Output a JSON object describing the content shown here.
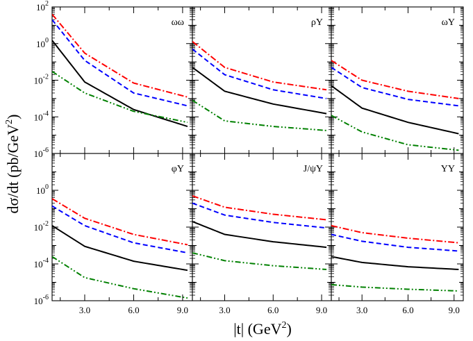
{
  "chart_data": {
    "type": "line",
    "layout": "2x3 panel grid, shared axes",
    "xlabel": "|t| (GeV²)",
    "xlabel_main": "|t| (GeV",
    "xlabel_sup": "2",
    "xlabel_close": ")",
    "ylabel": "dσ/dt (pb/GeV²)",
    "ylabel_main": "dσ/dt (pb/GeV",
    "ylabel_sup": "2",
    "ylabel_close": ")",
    "xlim": [
      1.0,
      9.6
    ],
    "ylim": [
      1e-06,
      100
    ],
    "yscale": "log",
    "x_ticks": [
      "3.0",
      "6.0",
      "9.0"
    ],
    "x_tick_values": [
      3.0,
      6.0,
      9.0
    ],
    "y_ticks_top": [
      {
        "base": "10",
        "exp": "2",
        "value": 100
      },
      {
        "base": "10",
        "exp": "0",
        "value": 1
      },
      {
        "base": "10",
        "exp": "-2",
        "value": 0.01
      },
      {
        "base": "10",
        "exp": "-4",
        "value": 0.0001
      },
      {
        "base": "10",
        "exp": "-6",
        "value": 1e-06
      }
    ],
    "y_ticks_bottom": [
      {
        "base": "10",
        "exp": "0",
        "value": 1
      },
      {
        "base": "10",
        "exp": "-2",
        "value": 0.01
      },
      {
        "base": "10",
        "exp": "-4",
        "value": 0.0001
      },
      {
        "base": "10",
        "exp": "-6",
        "value": 1e-06
      }
    ],
    "series_styles": [
      {
        "name": "red dash-dot",
        "color": "#ff0000",
        "dash": "9,3,2,3"
      },
      {
        "name": "blue dashed",
        "color": "#0000ff",
        "dash": "7,4"
      },
      {
        "name": "black solid",
        "color": "#000000",
        "dash": ""
      },
      {
        "name": "green dash-dot-dot",
        "color": "#008000",
        "dash": "8,3,2,3,2,3"
      }
    ],
    "panels": [
      {
        "label": "ωω",
        "row": 0,
        "col": 0,
        "series": [
          {
            "x": [
              1.0,
              3.0,
              6.0,
              9.3
            ],
            "y": [
              40,
              0.3,
              0.007,
              0.0012
            ]
          },
          {
            "x": [
              1.0,
              3.0,
              6.0,
              9.3
            ],
            "y": [
              20,
              0.12,
              0.002,
              0.0004
            ]
          },
          {
            "x": [
              1.0,
              3.0,
              6.0,
              9.3
            ],
            "y": [
              1.5,
              0.008,
              0.00025,
              3e-05
            ]
          },
          {
            "x": [
              1.0,
              3.0,
              6.0,
              9.3
            ],
            "y": [
              0.03,
              0.002,
              0.0002,
              5e-05
            ]
          }
        ]
      },
      {
        "label": "ρΥ",
        "row": 0,
        "col": 1,
        "series": [
          {
            "x": [
              1.0,
              3.0,
              6.0,
              9.3
            ],
            "y": [
              1.3,
              0.05,
              0.008,
              0.003
            ]
          },
          {
            "x": [
              1.0,
              3.0,
              6.0,
              9.3
            ],
            "y": [
              0.5,
              0.02,
              0.003,
              0.001
            ]
          },
          {
            "x": [
              1.0,
              3.0,
              6.0,
              9.3
            ],
            "y": [
              0.05,
              0.0025,
              0.0005,
              0.00015
            ]
          },
          {
            "x": [
              1.0,
              3.0,
              6.0,
              9.3
            ],
            "y": [
              0.0008,
              6e-05,
              3e-05,
              1.8e-05
            ]
          }
        ]
      },
      {
        "label": "ωΥ",
        "row": 0,
        "col": 2,
        "series": [
          {
            "x": [
              1.0,
              3.0,
              6.0,
              9.3
            ],
            "y": [
              0.12,
              0.01,
              0.0025,
              0.001
            ]
          },
          {
            "x": [
              1.0,
              3.0,
              6.0,
              9.3
            ],
            "y": [
              0.05,
              0.004,
              0.0009,
              0.0004
            ]
          },
          {
            "x": [
              1.0,
              3.0,
              6.0,
              9.3
            ],
            "y": [
              0.005,
              0.0003,
              5e-05,
              1.2e-05
            ]
          },
          {
            "x": [
              1.0,
              3.0,
              6.0,
              9.3
            ],
            "y": [
              0.00012,
              1.5e-05,
              3e-06,
              1.5e-06
            ]
          }
        ]
      },
      {
        "label": "φΥ",
        "row": 1,
        "col": 0,
        "series": [
          {
            "x": [
              1.0,
              3.0,
              6.0,
              9.3
            ],
            "y": [
              0.35,
              0.03,
              0.004,
              0.0011
            ]
          },
          {
            "x": [
              1.0,
              3.0,
              6.0,
              9.3
            ],
            "y": [
              0.14,
              0.012,
              0.0014,
              0.0004
            ]
          },
          {
            "x": [
              1.0,
              3.0,
              6.0,
              9.3
            ],
            "y": [
              0.012,
              0.0009,
              0.00014,
              4.5e-05
            ]
          },
          {
            "x": [
              1.0,
              3.0,
              6.0,
              9.3
            ],
            "y": [
              0.00025,
              1.8e-05,
              4.5e-06,
              1.4e-06
            ]
          }
        ]
      },
      {
        "label": "J/ψΥ",
        "row": 1,
        "col": 1,
        "series": [
          {
            "x": [
              1.0,
              3.0,
              6.0,
              9.3
            ],
            "y": [
              0.5,
              0.12,
              0.05,
              0.025
            ]
          },
          {
            "x": [
              1.0,
              3.0,
              6.0,
              9.3
            ],
            "y": [
              0.2,
              0.045,
              0.018,
              0.009
            ]
          },
          {
            "x": [
              1.0,
              3.0,
              6.0,
              9.3
            ],
            "y": [
              0.02,
              0.004,
              0.0016,
              0.0008
            ]
          },
          {
            "x": [
              1.0,
              3.0,
              6.0,
              9.3
            ],
            "y": [
              0.0004,
              0.00015,
              8e-05,
              5e-05
            ]
          }
        ]
      },
      {
        "label": "ΥΥ",
        "row": 1,
        "col": 2,
        "series": [
          {
            "x": [
              1.0,
              3.0,
              6.0,
              9.3
            ],
            "y": [
              0.012,
              0.005,
              0.0025,
              0.0014
            ]
          },
          {
            "x": [
              1.0,
              3.0,
              6.0,
              9.3
            ],
            "y": [
              0.004,
              0.0017,
              0.0008,
              0.0005
            ]
          },
          {
            "x": [
              1.0,
              3.0,
              6.0,
              9.3
            ],
            "y": [
              0.00025,
              0.00012,
              7e-05,
              5e-05
            ]
          },
          {
            "x": [
              1.0,
              3.0,
              6.0,
              9.3
            ],
            "y": [
              7.5e-06,
              5.5e-06,
              4.2e-06,
              3.4e-06
            ]
          }
        ]
      }
    ]
  }
}
